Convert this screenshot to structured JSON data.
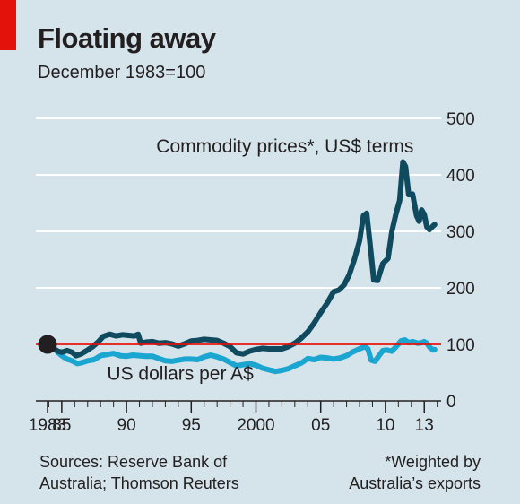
{
  "colors": {
    "background": "#d5e4eb",
    "accent": "#e3120b",
    "commodity": "#0f4a5e",
    "usd": "#1aa6d0",
    "baseline": "#e3120b",
    "gridline": "#ffffff",
    "text": "#231f20"
  },
  "chart_data": {
    "type": "line",
    "title": "Floating away",
    "subtitle": "December 1983=100",
    "xlabel": "",
    "ylabel": "",
    "xlim": [
      1983,
      2014.3
    ],
    "ylim": [
      0,
      500
    ],
    "y_ticks": [
      0,
      100,
      200,
      300,
      400,
      500
    ],
    "y_tick_labels": [
      "0",
      "100",
      "200",
      "300",
      "400",
      "500"
    ],
    "x_ticks": [
      1983.9,
      1985,
      1990,
      1995,
      2000,
      2005,
      2010,
      2013
    ],
    "x_tick_labels": [
      "1983",
      "85",
      "90",
      "95",
      "2000",
      "05",
      "10",
      "13"
    ],
    "x_minor_ticks": [
      1984,
      1985,
      1986,
      1987,
      1988,
      1989,
      1990,
      1991,
      1992,
      1993,
      1994,
      1995,
      1996,
      1997,
      1998,
      1999,
      2000,
      2001,
      2002,
      2003,
      2004,
      2005,
      2006,
      2007,
      2008,
      2009,
      2010,
      2011,
      2012,
      2013,
      2014
    ],
    "grid": true,
    "reference_line": 100,
    "start_marker": {
      "x": 1983.9,
      "y": 100
    },
    "sources": [
      "Sources: Reserve Bank of",
      "Australia; Thomson Reuters"
    ],
    "footnote": [
      "*Weighted by",
      "Australia’s exports"
    ],
    "series": [
      {
        "name": "Commodity prices*, US$ terms",
        "label_pos": [
          1992.3,
          440
        ],
        "points": [
          [
            1983.9,
            100
          ],
          [
            1984.3,
            94
          ],
          [
            1984.7,
            88
          ],
          [
            1985.0,
            86
          ],
          [
            1985.4,
            89
          ],
          [
            1985.8,
            86
          ],
          [
            1986.1,
            80
          ],
          [
            1986.5,
            83
          ],
          [
            1987.0,
            90
          ],
          [
            1987.4,
            96
          ],
          [
            1987.8,
            104
          ],
          [
            1988.2,
            114
          ],
          [
            1988.7,
            118
          ],
          [
            1989.2,
            115
          ],
          [
            1989.7,
            117
          ],
          [
            1990.1,
            116
          ],
          [
            1990.6,
            115
          ],
          [
            1990.9,
            118
          ],
          [
            1991.1,
            102
          ],
          [
            1991.5,
            104
          ],
          [
            1992.0,
            105
          ],
          [
            1992.5,
            102
          ],
          [
            1993.0,
            103
          ],
          [
            1993.5,
            101
          ],
          [
            1994.0,
            97
          ],
          [
            1994.5,
            101
          ],
          [
            1995.0,
            106
          ],
          [
            1995.5,
            107
          ],
          [
            1996.0,
            109
          ],
          [
            1996.5,
            108
          ],
          [
            1997.0,
            107
          ],
          [
            1997.5,
            102
          ],
          [
            1998.0,
            96
          ],
          [
            1998.5,
            85
          ],
          [
            1999.0,
            83
          ],
          [
            1999.5,
            88
          ],
          [
            2000.0,
            91
          ],
          [
            2000.5,
            93
          ],
          [
            2001.0,
            92
          ],
          [
            2001.5,
            92
          ],
          [
            2002.0,
            92
          ],
          [
            2002.5,
            96
          ],
          [
            2003.0,
            102
          ],
          [
            2003.5,
            111
          ],
          [
            2004.0,
            122
          ],
          [
            2004.5,
            138
          ],
          [
            2005.0,
            156
          ],
          [
            2005.5,
            173
          ],
          [
            2006.0,
            193
          ],
          [
            2006.4,
            196
          ],
          [
            2006.8,
            205
          ],
          [
            2007.2,
            223
          ],
          [
            2007.6,
            250
          ],
          [
            2008.0,
            283
          ],
          [
            2008.3,
            328
          ],
          [
            2008.55,
            332
          ],
          [
            2008.8,
            280
          ],
          [
            2009.1,
            214
          ],
          [
            2009.4,
            213
          ],
          [
            2009.8,
            243
          ],
          [
            2010.2,
            252
          ],
          [
            2010.5,
            300
          ],
          [
            2010.8,
            330
          ],
          [
            2011.1,
            355
          ],
          [
            2011.35,
            423
          ],
          [
            2011.55,
            415
          ],
          [
            2011.8,
            365
          ],
          [
            2012.1,
            366
          ],
          [
            2012.4,
            328
          ],
          [
            2012.6,
            318
          ],
          [
            2012.8,
            338
          ],
          [
            2013.0,
            330
          ],
          [
            2013.2,
            308
          ],
          [
            2013.4,
            303
          ],
          [
            2013.6,
            308
          ],
          [
            2013.8,
            312
          ]
        ]
      },
      {
        "name": "US dollars per A$",
        "label_pos": [
          1988.5,
          37
        ],
        "points": [
          [
            1983.9,
            100
          ],
          [
            1984.3,
            95
          ],
          [
            1984.7,
            86
          ],
          [
            1985.0,
            80
          ],
          [
            1985.4,
            74
          ],
          [
            1985.8,
            71
          ],
          [
            1986.2,
            66
          ],
          [
            1986.6,
            68
          ],
          [
            1987.0,
            71
          ],
          [
            1987.5,
            73
          ],
          [
            1988.0,
            80
          ],
          [
            1988.5,
            82
          ],
          [
            1989.0,
            84
          ],
          [
            1989.5,
            80
          ],
          [
            1990.0,
            79
          ],
          [
            1990.5,
            81
          ],
          [
            1991.0,
            80
          ],
          [
            1991.5,
            79
          ],
          [
            1992.0,
            79
          ],
          [
            1992.5,
            75
          ],
          [
            1993.0,
            71
          ],
          [
            1993.5,
            70
          ],
          [
            1994.0,
            72
          ],
          [
            1994.5,
            74
          ],
          [
            1995.0,
            74
          ],
          [
            1995.5,
            73
          ],
          [
            1996.0,
            78
          ],
          [
            1996.5,
            81
          ],
          [
            1997.0,
            78
          ],
          [
            1997.5,
            74
          ],
          [
            1998.0,
            68
          ],
          [
            1998.5,
            62
          ],
          [
            1999.0,
            64
          ],
          [
            1999.5,
            66
          ],
          [
            2000.0,
            63
          ],
          [
            2000.5,
            58
          ],
          [
            2001.0,
            55
          ],
          [
            2001.5,
            52
          ],
          [
            2002.0,
            54
          ],
          [
            2002.5,
            57
          ],
          [
            2003.0,
            62
          ],
          [
            2003.5,
            67
          ],
          [
            2004.0,
            75
          ],
          [
            2004.5,
            73
          ],
          [
            2005.0,
            77
          ],
          [
            2005.5,
            76
          ],
          [
            2006.0,
            74
          ],
          [
            2006.5,
            76
          ],
          [
            2007.0,
            80
          ],
          [
            2007.5,
            87
          ],
          [
            2008.0,
            92
          ],
          [
            2008.4,
            96
          ],
          [
            2008.65,
            92
          ],
          [
            2008.9,
            72
          ],
          [
            2009.2,
            70
          ],
          [
            2009.5,
            80
          ],
          [
            2009.8,
            89
          ],
          [
            2010.1,
            90
          ],
          [
            2010.5,
            88
          ],
          [
            2010.9,
            98
          ],
          [
            2011.2,
            106
          ],
          [
            2011.5,
            108
          ],
          [
            2011.8,
            103
          ],
          [
            2012.1,
            105
          ],
          [
            2012.5,
            102
          ],
          [
            2012.8,
            103
          ],
          [
            2013.0,
            105
          ],
          [
            2013.2,
            102
          ],
          [
            2013.45,
            94
          ],
          [
            2013.7,
            90
          ],
          [
            2013.8,
            91
          ]
        ]
      }
    ]
  }
}
